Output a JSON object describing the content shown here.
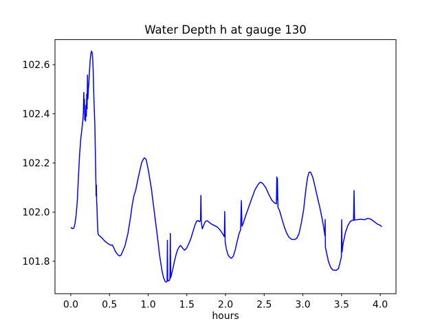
{
  "chart_data": {
    "type": "line",
    "title": "Water Depth h at gauge 130",
    "xlabel": "hours",
    "ylabel": "",
    "grid": false,
    "legend_position": "none",
    "line_color": "#0000ff",
    "axis_color": "#000000",
    "background_color": "#ffffff",
    "xlim": [
      -0.204,
      4.204
    ],
    "ylim": [
      101.668,
      102.702
    ],
    "x_ticks": [
      0.0,
      0.5,
      1.0,
      1.5,
      2.0,
      2.5,
      3.0,
      3.5,
      4.0
    ],
    "x_tick_labels": [
      "0.0",
      "0.5",
      "1.0",
      "1.5",
      "2.0",
      "2.5",
      "3.0",
      "3.5",
      "4.0"
    ],
    "y_ticks": [
      101.8,
      102.0,
      102.2,
      102.4,
      102.6
    ],
    "y_tick_labels": [
      "101.8",
      "102.0",
      "102.2",
      "102.4",
      "102.6"
    ],
    "series": [
      {
        "name": "water-depth-h",
        "points": [
          [
            0.0,
            101.938
          ],
          [
            0.02,
            101.933
          ],
          [
            0.04,
            101.935
          ],
          [
            0.055,
            101.955
          ],
          [
            0.07,
            101.99
          ],
          [
            0.085,
            102.05
          ],
          [
            0.1,
            102.15
          ],
          [
            0.115,
            102.24
          ],
          [
            0.13,
            102.3
          ],
          [
            0.145,
            102.34
          ],
          [
            0.155,
            102.37
          ],
          [
            0.163,
            102.405
          ],
          [
            0.168,
            102.487
          ],
          [
            0.172,
            102.42
          ],
          [
            0.176,
            102.46
          ],
          [
            0.181,
            102.375
          ],
          [
            0.186,
            102.41
          ],
          [
            0.191,
            102.37
          ],
          [
            0.196,
            102.435
          ],
          [
            0.201,
            102.39
          ],
          [
            0.206,
            102.48
          ],
          [
            0.211,
            102.42
          ],
          [
            0.216,
            102.558
          ],
          [
            0.221,
            102.46
          ],
          [
            0.227,
            102.5
          ],
          [
            0.233,
            102.52
          ],
          [
            0.24,
            102.565
          ],
          [
            0.25,
            102.615
          ],
          [
            0.26,
            102.645
          ],
          [
            0.268,
            102.655
          ],
          [
            0.277,
            102.648
          ],
          [
            0.285,
            102.615
          ],
          [
            0.291,
            102.56
          ],
          [
            0.296,
            102.49
          ],
          [
            0.301,
            102.445
          ],
          [
            0.306,
            102.4
          ],
          [
            0.311,
            102.355
          ],
          [
            0.316,
            102.27
          ],
          [
            0.321,
            102.19
          ],
          [
            0.325,
            102.12
          ],
          [
            0.328,
            102.065
          ],
          [
            0.331,
            102.11
          ],
          [
            0.334,
            102.045
          ],
          [
            0.338,
            102.025
          ],
          [
            0.341,
            101.995
          ],
          [
            0.345,
            101.955
          ],
          [
            0.35,
            101.92
          ],
          [
            0.356,
            101.908
          ],
          [
            0.37,
            101.904
          ],
          [
            0.4,
            101.896
          ],
          [
            0.44,
            101.882
          ],
          [
            0.48,
            101.872
          ],
          [
            0.515,
            101.865
          ],
          [
            0.535,
            101.867
          ],
          [
            0.555,
            101.856
          ],
          [
            0.58,
            101.838
          ],
          [
            0.61,
            101.826
          ],
          [
            0.63,
            101.822
          ],
          [
            0.65,
            101.825
          ],
          [
            0.7,
            101.862
          ],
          [
            0.74,
            101.915
          ],
          [
            0.77,
            101.975
          ],
          [
            0.795,
            102.03
          ],
          [
            0.815,
            102.065
          ],
          [
            0.84,
            102.09
          ],
          [
            0.865,
            102.13
          ],
          [
            0.89,
            102.165
          ],
          [
            0.915,
            102.2
          ],
          [
            0.94,
            102.217
          ],
          [
            0.955,
            102.221
          ],
          [
            0.975,
            102.213
          ],
          [
            1.0,
            102.175
          ],
          [
            1.04,
            102.1
          ],
          [
            1.08,
            102.0
          ],
          [
            1.12,
            101.9
          ],
          [
            1.15,
            101.82
          ],
          [
            1.18,
            101.76
          ],
          [
            1.2,
            101.732
          ],
          [
            1.22,
            101.718
          ],
          [
            1.235,
            101.715
          ],
          [
            1.245,
            101.718
          ],
          [
            1.249,
            101.885
          ],
          [
            1.253,
            101.722
          ],
          [
            1.27,
            101.72
          ],
          [
            1.282,
            101.728
          ],
          [
            1.287,
            101.913
          ],
          [
            1.292,
            101.733
          ],
          [
            1.3,
            101.744
          ],
          [
            1.32,
            101.77
          ],
          [
            1.34,
            101.8
          ],
          [
            1.36,
            101.826
          ],
          [
            1.38,
            101.846
          ],
          [
            1.4,
            101.858
          ],
          [
            1.42,
            101.864
          ],
          [
            1.445,
            101.854
          ],
          [
            1.47,
            101.845
          ],
          [
            1.495,
            101.852
          ],
          [
            1.52,
            101.868
          ],
          [
            1.55,
            101.89
          ],
          [
            1.58,
            101.921
          ],
          [
            1.605,
            101.947
          ],
          [
            1.625,
            101.962
          ],
          [
            1.645,
            101.966
          ],
          [
            1.662,
            101.961
          ],
          [
            1.677,
            101.966
          ],
          [
            1.682,
            102.068
          ],
          [
            1.687,
            101.96
          ],
          [
            1.7,
            101.932
          ],
          [
            1.72,
            101.948
          ],
          [
            1.74,
            101.962
          ],
          [
            1.765,
            101.965
          ],
          [
            1.79,
            101.958
          ],
          [
            1.82,
            101.951
          ],
          [
            1.86,
            101.945
          ],
          [
            1.9,
            101.938
          ],
          [
            1.94,
            101.923
          ],
          [
            1.97,
            101.908
          ],
          [
            1.985,
            101.9
          ],
          [
            1.99,
            102.002
          ],
          [
            1.996,
            101.878
          ],
          [
            2.01,
            101.852
          ],
          [
            2.03,
            101.828
          ],
          [
            2.05,
            101.818
          ],
          [
            2.075,
            101.812
          ],
          [
            2.1,
            101.82
          ],
          [
            2.125,
            101.845
          ],
          [
            2.15,
            101.88
          ],
          [
            2.175,
            101.912
          ],
          [
            2.195,
            101.928
          ],
          [
            2.205,
            102.047
          ],
          [
            2.213,
            101.942
          ],
          [
            2.23,
            101.955
          ],
          [
            2.26,
            101.985
          ],
          [
            2.3,
            102.02
          ],
          [
            2.34,
            102.056
          ],
          [
            2.38,
            102.09
          ],
          [
            2.42,
            102.112
          ],
          [
            2.45,
            102.122
          ],
          [
            2.48,
            102.117
          ],
          [
            2.52,
            102.1
          ],
          [
            2.56,
            102.072
          ],
          [
            2.6,
            102.048
          ],
          [
            2.635,
            102.037
          ],
          [
            2.658,
            102.034
          ],
          [
            2.663,
            102.143
          ],
          [
            2.667,
            102.05
          ],
          [
            2.671,
            102.138
          ],
          [
            2.678,
            102.02
          ],
          [
            2.7,
            102.005
          ],
          [
            2.73,
            101.972
          ],
          [
            2.76,
            101.94
          ],
          [
            2.79,
            101.915
          ],
          [
            2.82,
            101.898
          ],
          [
            2.85,
            101.89
          ],
          [
            2.89,
            101.888
          ],
          [
            2.92,
            101.893
          ],
          [
            2.95,
            101.912
          ],
          [
            2.98,
            101.955
          ],
          [
            3.01,
            102.01
          ],
          [
            3.04,
            102.095
          ],
          [
            3.06,
            102.14
          ],
          [
            3.08,
            102.162
          ],
          [
            3.1,
            102.163
          ],
          [
            3.13,
            102.14
          ],
          [
            3.16,
            102.1
          ],
          [
            3.19,
            102.058
          ],
          [
            3.22,
            102.018
          ],
          [
            3.25,
            101.972
          ],
          [
            3.28,
            101.917
          ],
          [
            3.284,
            101.905
          ],
          [
            3.288,
            101.97
          ],
          [
            3.292,
            101.856
          ],
          [
            3.31,
            101.83
          ],
          [
            3.33,
            101.8
          ],
          [
            3.36,
            101.775
          ],
          [
            3.39,
            101.764
          ],
          [
            3.43,
            101.763
          ],
          [
            3.46,
            101.77
          ],
          [
            3.485,
            101.8
          ],
          [
            3.498,
            101.818
          ],
          [
            3.502,
            101.969
          ],
          [
            3.507,
            101.838
          ],
          [
            3.52,
            101.872
          ],
          [
            3.55,
            101.916
          ],
          [
            3.58,
            101.944
          ],
          [
            3.61,
            101.961
          ],
          [
            3.64,
            101.967
          ],
          [
            3.655,
            101.966
          ],
          [
            3.662,
            102.088
          ],
          [
            3.668,
            101.968
          ],
          [
            3.7,
            101.969
          ],
          [
            3.75,
            101.971
          ],
          [
            3.8,
            101.969
          ],
          [
            3.84,
            101.975
          ],
          [
            3.88,
            101.971
          ],
          [
            3.92,
            101.962
          ],
          [
            3.96,
            101.952
          ],
          [
            4.0,
            101.946
          ],
          [
            4.02,
            101.941
          ]
        ]
      }
    ]
  }
}
